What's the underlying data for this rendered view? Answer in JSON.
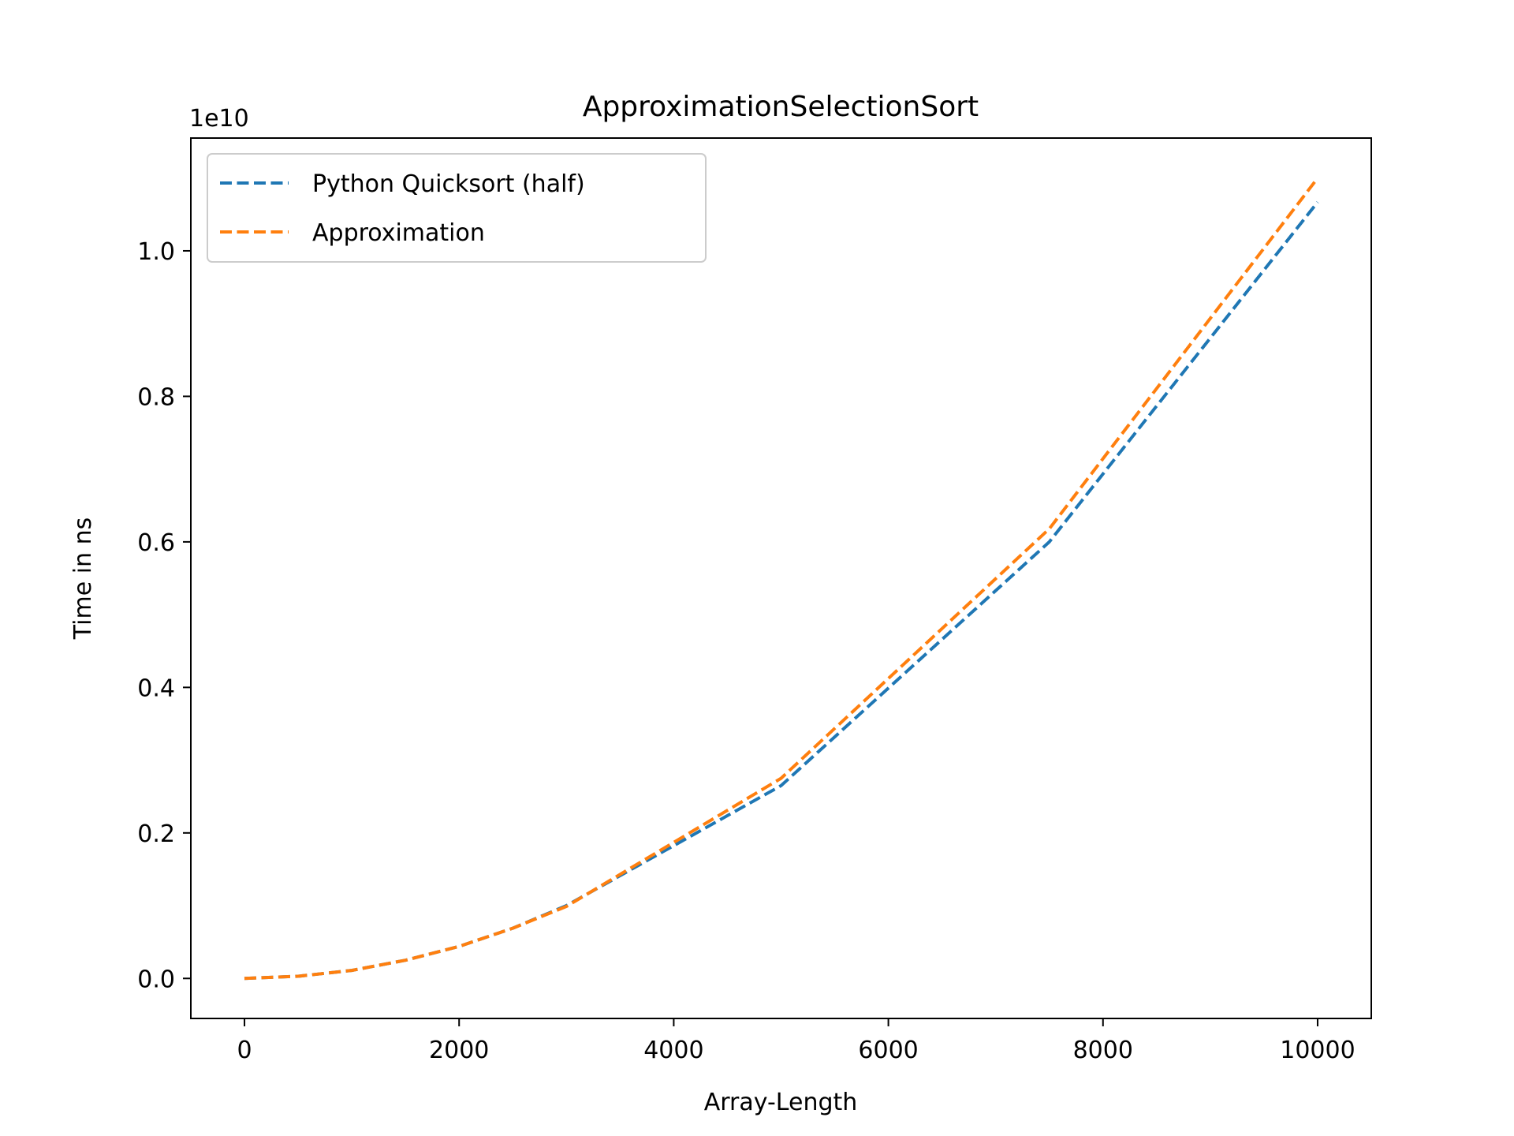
{
  "chart_data": {
    "type": "line",
    "title": "ApproximationSelectionSort",
    "xlabel": "Array-Length",
    "ylabel": "Time in ns",
    "y_offset_label": "1e10",
    "y_scale": 10000000000,
    "xlim": [
      -500,
      10500
    ],
    "ylim": [
      -0.055,
      1.155
    ],
    "x_ticks": [
      0,
      2000,
      4000,
      6000,
      8000,
      10000
    ],
    "x_tick_labels": [
      "0",
      "2000",
      "4000",
      "6000",
      "8000",
      "10000"
    ],
    "y_ticks": [
      0.0,
      0.2,
      0.4,
      0.6,
      0.8,
      1.0
    ],
    "y_tick_labels": [
      "0.0",
      "0.2",
      "0.4",
      "0.6",
      "0.8",
      "1.0"
    ],
    "grid": false,
    "legend_position": "top-left",
    "series": [
      {
        "name": "Python Quicksort (half)",
        "color": "#1f77b4",
        "line_style": "dashed",
        "x": [
          0,
          500,
          1000,
          1500,
          2000,
          2500,
          3000,
          5000,
          7500,
          10000
        ],
        "y": [
          0.0,
          0.003,
          0.011,
          0.025,
          0.044,
          0.069,
          0.1,
          0.265,
          0.6,
          1.067
        ]
      },
      {
        "name": "Approximation",
        "color": "#ff7f0e",
        "line_style": "dashed",
        "x": [
          0,
          500,
          1000,
          1500,
          2000,
          2500,
          3000,
          5000,
          7500,
          10000
        ],
        "y": [
          0.0,
          0.003,
          0.011,
          0.025,
          0.044,
          0.069,
          0.099,
          0.275,
          0.618,
          1.1
        ]
      }
    ]
  }
}
